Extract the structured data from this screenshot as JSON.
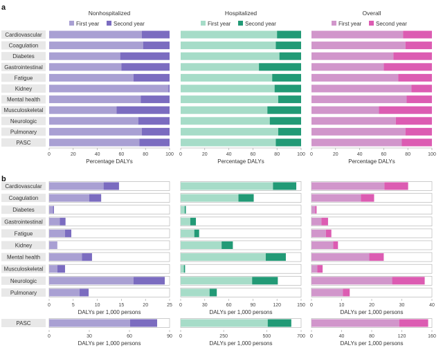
{
  "chart_data": [
    {
      "panel": "a",
      "type": "bar",
      "orientation": "horizontal",
      "stacked": true,
      "categories": [
        "Cardiovascular",
        "Coagulation",
        "Diabetes",
        "Gastrointestinal",
        "Fatigue",
        "Kidney",
        "Mental health",
        "Musculoskeletal",
        "Neurologic",
        "Pulmonary",
        "PASC"
      ],
      "subplots": [
        {
          "title": "Nonhospitalized",
          "xlabel": "Percentage DALYs",
          "xlim": [
            0,
            100
          ],
          "xticks": [
            "0",
            "20",
            "40",
            "60",
            "80",
            "100"
          ],
          "colors": {
            "first": "#a9a0d3",
            "second": "#7b6cc0"
          },
          "series": [
            {
              "name": "First year",
              "values": [
                77,
                78,
                59,
                60,
                70,
                99,
                76,
                56,
                74,
                77,
                75
              ]
            },
            {
              "name": "Second year",
              "values": [
                23,
                22,
                41,
                40,
                30,
                1,
                24,
                44,
                26,
                23,
                25
              ]
            }
          ]
        },
        {
          "title": "Hospitalized",
          "xlabel": "Percentage DALYs",
          "xlim": [
            0,
            100
          ],
          "xticks": [
            "0",
            "20",
            "40",
            "60",
            "80",
            "100"
          ],
          "colors": {
            "first": "#a6dcc8",
            "second": "#229a76"
          },
          "series": [
            {
              "name": "First year",
              "values": [
                80,
                79,
                82,
                65,
                76,
                78,
                81,
                72,
                74,
                81,
                79
              ]
            },
            {
              "name": "Second year",
              "values": [
                20,
                21,
                18,
                35,
                24,
                22,
                19,
                28,
                26,
                19,
                21
              ]
            }
          ]
        },
        {
          "title": "Overall",
          "xlabel": "Percentage DALYs",
          "xlim": [
            0,
            100
          ],
          "xticks": [
            "0",
            "20",
            "40",
            "60",
            "80",
            "100"
          ],
          "colors": {
            "first": "#d196cb",
            "second": "#dc5cb2"
          },
          "series": [
            {
              "name": "First year",
              "values": [
                76,
                78,
                68,
                60,
                72,
                83,
                79,
                56,
                70,
                78,
                75
              ]
            },
            {
              "name": "Second year",
              "values": [
                24,
                22,
                32,
                40,
                28,
                17,
                21,
                44,
                30,
                22,
                25
              ]
            }
          ]
        }
      ],
      "legend": [
        "First year",
        "Second year"
      ],
      "legend_position": "top"
    },
    {
      "panel": "b",
      "type": "bar",
      "orientation": "horizontal",
      "stacked": true,
      "categories": [
        "Cardiovascular",
        "Coagulation",
        "Diabetes",
        "Gastrointestinal",
        "Fatigue",
        "Kidney",
        "Mental health",
        "Musculoskeletal",
        "Neurologic",
        "Pulmonary"
      ],
      "pasc_category": "PASC",
      "subplots": [
        {
          "title": "Nonhospitalized",
          "xlabel": "DALYs per 1,000 persons",
          "xlim": [
            0,
            25
          ],
          "xticks": [
            "0",
            "5",
            "10",
            "15",
            "20",
            "25"
          ],
          "colors": {
            "first": "#a9a0d3",
            "second": "#7b6cc0"
          },
          "series": [
            {
              "name": "First year",
              "values": [
                11.3,
                8.3,
                0.8,
                2.2,
                3.3,
                1.7,
                6.8,
                1.7,
                17.5,
                6.3
              ]
            },
            {
              "name": "Second year",
              "values": [
                3.2,
                2.5,
                0.2,
                1.2,
                1.3,
                0.0,
                2.1,
                1.6,
                6.5,
                1.9
              ]
            }
          ],
          "pasc": {
            "xlim": [
              0,
              90
            ],
            "xticks": [
              "0",
              "30",
              "60",
              "90"
            ],
            "xlabel": "DALYs per 1,000 persons",
            "first": 60.5,
            "second": 20.2
          }
        },
        {
          "title": "Hospitalized",
          "xlabel": "DALYs per 1,000 persons",
          "xlim": [
            0,
            150
          ],
          "xticks": [
            "0",
            "30",
            "60",
            "90",
            "120",
            "150"
          ],
          "colors": {
            "first": "#a6dcc8",
            "second": "#229a76"
          },
          "series": [
            {
              "name": "First year",
              "values": [
                115,
                72,
                5,
                12,
                17,
                51,
                106,
                4,
                89,
                36
              ]
            },
            {
              "name": "Second year",
              "values": [
                29,
                19,
                1.5,
                7,
                6,
                14,
                25,
                1.5,
                32,
                9
              ]
            }
          ],
          "pasc": {
            "xlim": [
              0,
              700
            ],
            "xticks": [
              "0",
              "250",
              "500",
              "700"
            ],
            "xlabel": "DALYs per 1,000 persons",
            "first": 506,
            "second": 137
          }
        },
        {
          "title": "Overall",
          "xlabel": "DALYs per 1,000 persons",
          "xlim": [
            0,
            40
          ],
          "xticks": [
            "0",
            "10",
            "20",
            "30",
            "40"
          ],
          "colors": {
            "first": "#d196cb",
            "second": "#dc5cb2"
          },
          "series": [
            {
              "name": "First year",
              "values": [
                24.2,
                16.4,
                1.2,
                3.3,
                4.8,
                7.2,
                19.2,
                1.9,
                26.8,
                10.4
              ]
            },
            {
              "name": "Second year",
              "values": [
                7.9,
                4.4,
                0.5,
                2.2,
                1.8,
                1.6,
                4.8,
                1.8,
                10.8,
                2.3
              ]
            }
          ],
          "pasc": {
            "xlim": [
              0,
              160
            ],
            "xticks": [
              "0",
              "40",
              "80",
              "120",
              "160"
            ],
            "xlabel": "DALYs per 1,000 persons",
            "first": 116.5,
            "second": 38.5
          }
        }
      ]
    }
  ]
}
